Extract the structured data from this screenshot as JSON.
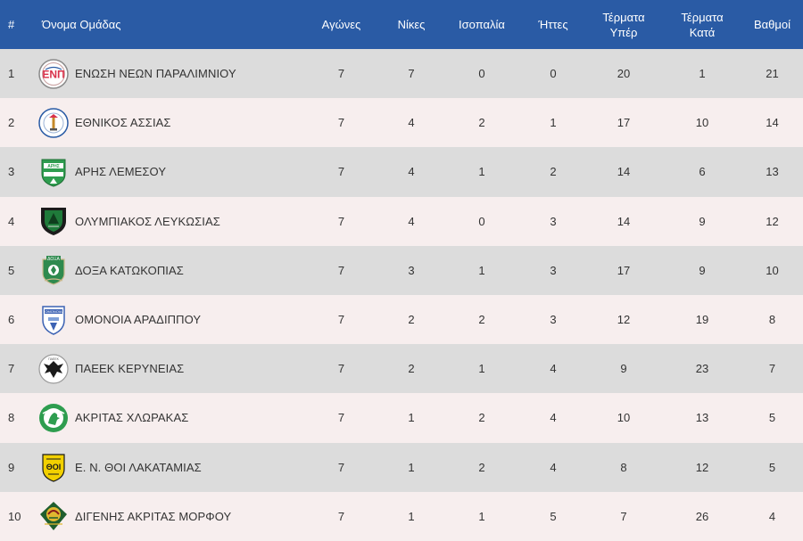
{
  "table": {
    "headers": {
      "rank": "#",
      "team": "Όνομα Ομάδας",
      "played": "Αγώνες",
      "wins": "Νίκες",
      "draws": "Ισοπαλία",
      "losses": "Ήττες",
      "goals_for_line1": "Τέρματα",
      "goals_for_line2": "Υπέρ",
      "goals_against_line1": "Τέρματα",
      "goals_against_line2": "Κατά",
      "points": "Βαθμοί"
    },
    "colors": {
      "header_bg": "#2a5ba5",
      "row_odd": "#dcdcdc",
      "row_even": "#f7eeee"
    },
    "rows": [
      {
        "rank": "1",
        "team": "ΕΝΩΣΗ ΝΕΩΝ ΠΑΡΑΛΙΜΝΙΟΥ",
        "crest": "enp-crest-icon",
        "played": "7",
        "wins": "7",
        "draws": "0",
        "losses": "0",
        "gf": "20",
        "ga": "1",
        "pts": "21"
      },
      {
        "rank": "2",
        "team": "ΕΘΝΙΚΟΣ ΑΣΣΙΑΣ",
        "crest": "ethnikos-assias-crest-icon",
        "played": "7",
        "wins": "4",
        "draws": "2",
        "losses": "1",
        "gf": "17",
        "ga": "10",
        "pts": "14"
      },
      {
        "rank": "3",
        "team": "ΑΡΗΣ ΛΕΜΕΣΟΥ",
        "crest": "aris-crest-icon",
        "played": "7",
        "wins": "4",
        "draws": "1",
        "losses": "2",
        "gf": "14",
        "ga": "6",
        "pts": "13"
      },
      {
        "rank": "4",
        "team": "ΟΛΥΜΠΙΑΚΟΣ ΛΕΥΚΩΣΙΑΣ",
        "crest": "olympiakos-crest-icon",
        "played": "7",
        "wins": "4",
        "draws": "0",
        "losses": "3",
        "gf": "14",
        "ga": "9",
        "pts": "12"
      },
      {
        "rank": "5",
        "team": "ΔΟΞΑ ΚΑΤΩΚΟΠΙΑΣ",
        "crest": "doxa-crest-icon",
        "played": "7",
        "wins": "3",
        "draws": "1",
        "losses": "3",
        "gf": "17",
        "ga": "9",
        "pts": "10"
      },
      {
        "rank": "6",
        "team": "ΟΜΟΝΟΙΑ ΑΡΑΔΙΠΠΟΥ",
        "crest": "omonoia-crest-icon",
        "played": "7",
        "wins": "2",
        "draws": "2",
        "losses": "3",
        "gf": "12",
        "ga": "19",
        "pts": "8"
      },
      {
        "rank": "7",
        "team": "ΠΑΕΕΚ ΚΕΡΥΝΕΙΑΣ",
        "crest": "paeek-crest-icon",
        "played": "7",
        "wins": "2",
        "draws": "1",
        "losses": "4",
        "gf": "9",
        "ga": "23",
        "pts": "7"
      },
      {
        "rank": "8",
        "team": "ΑΚΡΙΤΑΣ ΧΛΩΡΑΚΑΣ",
        "crest": "akritas-crest-icon",
        "played": "7",
        "wins": "1",
        "draws": "2",
        "losses": "4",
        "gf": "10",
        "ga": "13",
        "pts": "5"
      },
      {
        "rank": "9",
        "team": "Ε. Ν. ΘΟΙ ΛΑΚΑΤΑΜΙΑΣ",
        "crest": "thoi-crest-icon",
        "played": "7",
        "wins": "1",
        "draws": "2",
        "losses": "4",
        "gf": "8",
        "ga": "12",
        "pts": "5"
      },
      {
        "rank": "10",
        "team": "ΔΙΓΕΝΗΣ ΑΚΡΙΤΑΣ ΜΟΡΦΟΥ",
        "crest": "digenis-crest-icon",
        "played": "7",
        "wins": "1",
        "draws": "1",
        "losses": "5",
        "gf": "7",
        "ga": "26",
        "pts": "4"
      }
    ]
  }
}
